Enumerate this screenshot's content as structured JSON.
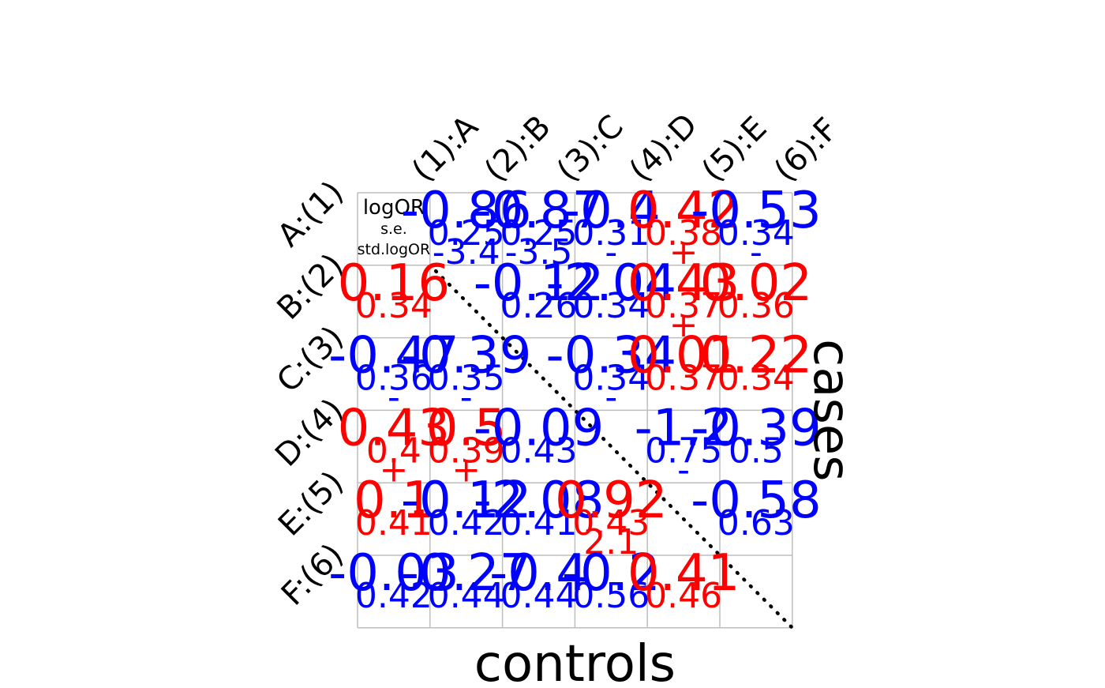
{
  "chart_data": {
    "type": "heatmap",
    "row_axis_label": "cases",
    "col_axis_label": "controls",
    "legend": {
      "line1": "logOR",
      "line2": "s.e.",
      "line3": "std.logOR"
    },
    "row_labels": [
      "A:(1)",
      "B:(2)",
      "C:(3)",
      "D:(4)",
      "E:(5)",
      "F:(6)"
    ],
    "col_labels": [
      "(1):A",
      "(2):B",
      "(3):C",
      "(4):D",
      "(5):E",
      "(6):F"
    ],
    "colors": {
      "negative": "#0000ff",
      "positive": "#ff0000",
      "grid": "#bebebe",
      "diagonal": "#000000"
    },
    "cells": [
      {
        "row": 0,
        "col": 1,
        "logOR": "-0.86",
        "se": "0.25",
        "std": "-3.4",
        "sign": "neg"
      },
      {
        "row": 0,
        "col": 2,
        "logOR": "-0.87",
        "se": "0.25",
        "std": "-3.5",
        "sign": "neg"
      },
      {
        "row": 0,
        "col": 3,
        "logOR": "-0.4",
        "se": "0.31",
        "std": "-",
        "sign": "neg"
      },
      {
        "row": 0,
        "col": 4,
        "logOR": "0.42",
        "se": "0.38",
        "std": "+",
        "sign": "pos"
      },
      {
        "row": 0,
        "col": 5,
        "logOR": "-0.53",
        "se": "0.34",
        "std": "-",
        "sign": "neg"
      },
      {
        "row": 1,
        "col": 0,
        "logOR": "0.16",
        "se": "0.34",
        "std": "",
        "sign": "pos"
      },
      {
        "row": 1,
        "col": 2,
        "logOR": "-0.12",
        "se": "0.26",
        "std": "",
        "sign": "neg"
      },
      {
        "row": 1,
        "col": 3,
        "logOR": "-2.04",
        "se": "0.34",
        "std": "",
        "sign": "neg"
      },
      {
        "row": 1,
        "col": 4,
        "logOR": "0.43",
        "se": "0.37",
        "std": "+",
        "sign": "pos"
      },
      {
        "row": 1,
        "col": 5,
        "logOR": "0.02",
        "se": "0.36",
        "std": "",
        "sign": "pos"
      },
      {
        "row": 2,
        "col": 0,
        "logOR": "-0.47",
        "se": "0.36",
        "std": "-",
        "sign": "neg"
      },
      {
        "row": 2,
        "col": 1,
        "logOR": "-0.39",
        "se": "0.35",
        "std": "-",
        "sign": "neg"
      },
      {
        "row": 2,
        "col": 3,
        "logOR": "-0.34",
        "se": "0.34",
        "std": "-",
        "sign": "neg"
      },
      {
        "row": 2,
        "col": 4,
        "logOR": "0.01",
        "se": "0.37",
        "std": "",
        "sign": "pos"
      },
      {
        "row": 2,
        "col": 5,
        "logOR": "0.22",
        "se": "0.34",
        "std": "",
        "sign": "pos"
      },
      {
        "row": 3,
        "col": 0,
        "logOR": "0.43",
        "se": "0.4",
        "std": "+",
        "sign": "pos"
      },
      {
        "row": 3,
        "col": 1,
        "logOR": "0.5",
        "se": "0.39",
        "std": "+",
        "sign": "pos"
      },
      {
        "row": 3,
        "col": 2,
        "logOR": "-0.09",
        "se": "0.43",
        "std": "",
        "sign": "neg"
      },
      {
        "row": 3,
        "col": 4,
        "logOR": "-1.2",
        "se": "0.75",
        "std": "-",
        "sign": "neg"
      },
      {
        "row": 3,
        "col": 5,
        "logOR": "-0.39",
        "se": "0.5",
        "std": "",
        "sign": "neg"
      },
      {
        "row": 4,
        "col": 0,
        "logOR": "0.1",
        "se": "0.41",
        "std": "",
        "sign": "pos"
      },
      {
        "row": 4,
        "col": 1,
        "logOR": "-0.12",
        "se": "0.42",
        "std": "",
        "sign": "neg"
      },
      {
        "row": 4,
        "col": 2,
        "logOR": "-2.08",
        "se": "0.41",
        "std": "",
        "sign": "neg"
      },
      {
        "row": 4,
        "col": 3,
        "logOR": "0.92",
        "se": "0.43",
        "std": "2.1",
        "sign": "pos"
      },
      {
        "row": 4,
        "col": 5,
        "logOR": "-0.58",
        "se": "0.63",
        "std": "",
        "sign": "neg"
      },
      {
        "row": 5,
        "col": 0,
        "logOR": "-0.03",
        "se": "0.42",
        "std": "",
        "sign": "neg"
      },
      {
        "row": 5,
        "col": 1,
        "logOR": "-0.27",
        "se": "0.44",
        "std": "",
        "sign": "neg"
      },
      {
        "row": 5,
        "col": 2,
        "logOR": "-0.4",
        "se": "0.44",
        "std": "",
        "sign": "neg"
      },
      {
        "row": 5,
        "col": 3,
        "logOR": "-0.2",
        "se": "0.56",
        "std": "",
        "sign": "neg"
      },
      {
        "row": 5,
        "col": 4,
        "logOR": "0.41",
        "se": "0.46",
        "std": "",
        "sign": "pos"
      }
    ]
  }
}
